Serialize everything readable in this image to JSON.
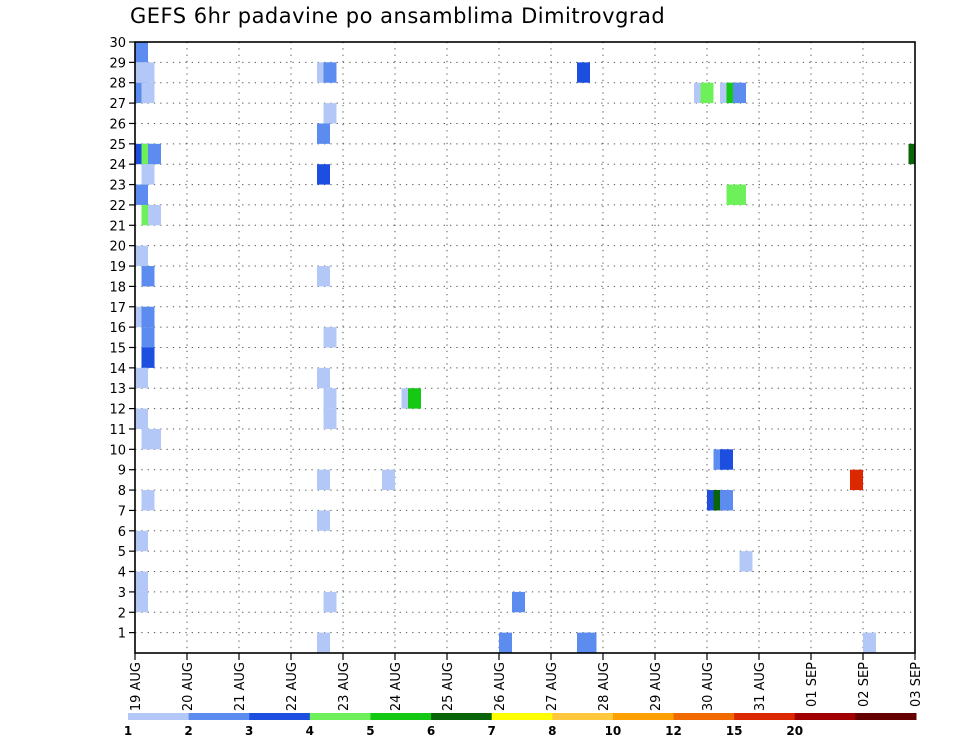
{
  "chart_data": {
    "type": "heatmap",
    "title": "GEFS 6hr padavine po ansamblima Dimitrovgrad",
    "x_labels": [
      "19 AUG",
      "20 AUG",
      "21 AUG",
      "22 AUG",
      "23 AUG",
      "24 AUG",
      "25 AUG",
      "26 AUG",
      "27 AUG",
      "28 AUG",
      "29 AUG",
      "30 AUG",
      "31 AUG",
      "01 SEP",
      "02 SEP",
      "03 SEP"
    ],
    "y_labels": [
      "1",
      "2",
      "3",
      "4",
      "5",
      "6",
      "7",
      "8",
      "9",
      "10",
      "11",
      "12",
      "13",
      "14",
      "15",
      "16",
      "17",
      "18",
      "19",
      "20",
      "21",
      "22",
      "23",
      "24",
      "25",
      "26",
      "27",
      "28",
      "29",
      "30"
    ],
    "x_range": [
      0,
      60
    ],
    "y_range": [
      0,
      30
    ],
    "grid": true,
    "colorbar": {
      "labels": [
        "1",
        "2",
        "3",
        "4",
        "5",
        "6",
        "7",
        "8",
        "10",
        "12",
        "15",
        "20"
      ],
      "colors": [
        "#b4c8f8",
        "#5c8cf0",
        "#1c4ee0",
        "#6ef05a",
        "#14c814",
        "#0a640a",
        "#ffff00",
        "#ffc83c",
        "#ffa000",
        "#f06a00",
        "#dc2800",
        "#a00000",
        "#640000"
      ]
    },
    "cells": [
      {
        "m": 29,
        "t": [
          [
            0.5,
            1
          ]
        ]
      },
      {
        "m": 28,
        "t": [
          [
            0.5,
            0
          ],
          [
            1,
            0
          ],
          [
            14.5,
            0
          ],
          [
            15,
            1
          ],
          [
            34.5,
            2
          ]
        ]
      },
      {
        "m": 27,
        "t": [
          [
            0.5,
            1
          ],
          [
            1,
            0
          ],
          [
            43.5,
            0
          ],
          [
            44,
            3
          ],
          [
            45.5,
            0
          ],
          [
            46,
            4
          ],
          [
            46.5,
            1
          ]
        ]
      },
      {
        "m": 26,
        "t": [
          [
            15,
            0
          ]
        ]
      },
      {
        "m": 25,
        "t": [
          [
            14.5,
            1
          ]
        ]
      },
      {
        "m": 24,
        "t": [
          [
            0.5,
            2
          ],
          [
            1,
            3
          ],
          [
            1.5,
            1
          ],
          [
            60,
            5
          ]
        ]
      },
      {
        "m": 23,
        "t": [
          [
            1,
            0
          ],
          [
            14.5,
            2
          ]
        ]
      },
      {
        "m": 22,
        "t": [
          [
            0.5,
            1
          ],
          [
            46,
            3
          ],
          [
            46.5,
            3
          ]
        ]
      },
      {
        "m": 21,
        "t": [
          [
            1,
            3
          ],
          [
            1.5,
            0
          ]
        ]
      },
      {
        "m": 19,
        "t": [
          [
            0.5,
            0
          ]
        ]
      },
      {
        "m": 18,
        "t": [
          [
            1,
            1
          ],
          [
            14.5,
            0
          ]
        ]
      },
      {
        "m": 16,
        "t": [
          [
            0.5,
            0
          ],
          [
            1,
            1
          ]
        ]
      },
      {
        "m": 15,
        "t": [
          [
            1,
            1
          ],
          [
            15,
            0
          ]
        ]
      },
      {
        "m": 14,
        "t": [
          [
            1,
            2
          ]
        ]
      },
      {
        "m": 13,
        "t": [
          [
            0.5,
            0
          ],
          [
            14.5,
            0
          ]
        ]
      },
      {
        "m": 12,
        "t": [
          [
            15,
            0
          ],
          [
            21,
            0
          ],
          [
            21.5,
            4
          ]
        ]
      },
      {
        "m": 11,
        "t": [
          [
            0.5,
            0
          ],
          [
            15,
            0
          ]
        ]
      },
      {
        "m": 10,
        "t": [
          [
            1,
            0
          ],
          [
            1.5,
            0
          ]
        ]
      },
      {
        "m": 9,
        "t": [
          [
            45,
            1
          ],
          [
            45.5,
            2
          ]
        ]
      },
      {
        "m": 8,
        "t": [
          [
            14.5,
            0
          ],
          [
            19.5,
            0
          ],
          [
            55.5,
            10
          ]
        ]
      },
      {
        "m": 7,
        "t": [
          [
            1,
            0
          ],
          [
            44.5,
            2
          ],
          [
            45,
            5
          ],
          [
            45.5,
            1
          ]
        ]
      },
      {
        "m": 6,
        "t": [
          [
            14.5,
            0
          ]
        ]
      },
      {
        "m": 5,
        "t": [
          [
            0.5,
            0
          ]
        ]
      },
      {
        "m": 4,
        "t": [
          [
            47,
            0
          ]
        ]
      },
      {
        "m": 3,
        "t": [
          [
            0.5,
            0
          ]
        ]
      },
      {
        "m": 2,
        "t": [
          [
            0.5,
            0
          ],
          [
            15,
            0
          ],
          [
            29.5,
            1
          ]
        ]
      },
      {
        "m": 0,
        "t": [
          [
            14.5,
            0
          ],
          [
            28.5,
            1
          ],
          [
            34.5,
            1
          ],
          [
            35,
            1
          ],
          [
            56.5,
            0
          ]
        ]
      }
    ]
  }
}
